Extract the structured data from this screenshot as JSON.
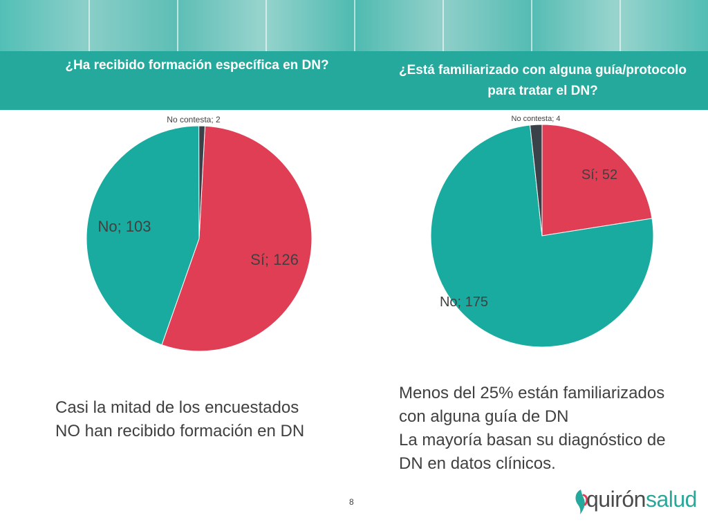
{
  "header": {
    "left_title": "¿Ha recibido formación específica en DN?",
    "right_title": "¿Está familiarizado con alguna guía/protocolo para tratar el DN?"
  },
  "chart_data": [
    {
      "type": "pie",
      "labels": [
        "Sí",
        "No",
        "No contesta"
      ],
      "values": [
        126,
        103,
        2
      ],
      "data_labels": [
        "Sí; 126",
        "No; 103",
        "No contesta; 2"
      ],
      "colors": [
        "#e03e55",
        "#1aaba0",
        "#3a4148"
      ]
    },
    {
      "type": "pie",
      "labels": [
        "Sí",
        "No",
        "No contesta"
      ],
      "values": [
        52,
        175,
        4
      ],
      "data_labels": [
        "Sí; 52",
        "No; 175",
        "No contesta; 4"
      ],
      "colors": [
        "#e03e55",
        "#1aaba0",
        "#3a4148"
      ]
    }
  ],
  "captions": {
    "left": [
      "Casi la mitad de los encuestados",
      "NO han recibido formación en DN"
    ],
    "right": [
      "Menos del 25% están familiarizados",
      "con alguna guía de DN",
      "La mayoría basan su diagnóstico de",
      "DN en datos clínicos."
    ]
  },
  "footer": {
    "page_number": "8",
    "logo_part1": "quirón",
    "logo_part2": "salud"
  },
  "colors": {
    "teal": "#24a99c",
    "red": "#e03e55",
    "dark": "#3a4148"
  }
}
